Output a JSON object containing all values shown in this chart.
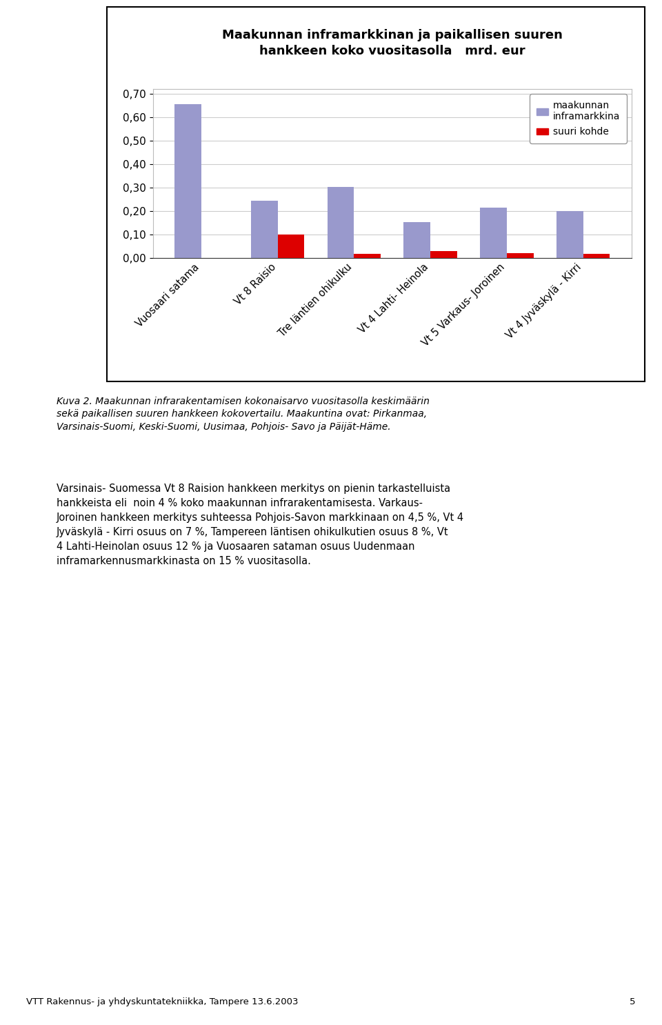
{
  "title_line1": "Maakunnan inframarkkinan ja paikallisen suuren",
  "title_line2": "hankkeen koko vuositasolla   mrd. eur",
  "categories": [
    "Vuosaari satama",
    "Vt 8 Raisio",
    "Tre läntien ohikulku",
    "Vt 4 Lahti- Heinola",
    "Vt 5 Varkaus- Joroinen",
    "Vt 4 Jyväskylä - Kirri"
  ],
  "blue_values": [
    0.655,
    0.245,
    0.305,
    0.155,
    0.215,
    0.2
  ],
  "red_values": [
    0.0,
    0.1,
    0.018,
    0.03,
    0.022,
    0.018
  ],
  "blue_color": "#9999CC",
  "red_color": "#DD0000",
  "legend_blue": "maakunnan\ninframarkkina",
  "legend_red": "suuri kohde",
  "yticks": [
    0.0,
    0.1,
    0.2,
    0.3,
    0.4,
    0.5,
    0.6,
    0.7
  ],
  "ylim": [
    0,
    0.72
  ],
  "grid_color": "#CCCCCC",
  "caption_italic": "Kuva 2. Maakunnan infrarakentamisen kokonaisarvo vuositasolla keskimäärin\nsekä paikallisen suuren hankkeen kokovertailu. Maakuntina ovat: Pirkanmaa,\nVarsinais-Suomi, Keski-Suomi, Uusimaa, Pohjois- Savo ja Päijät-Häme.",
  "body_text": "Varsinais- Suomessa Vt 8 Raision hankkeen merkitys on pienin tarkastelluista\nhankkeista eli  noin 4 % koko maakunnan infrarakentamisesta. Varkaus-\nJoroinen hankkeen merkitys suhteessa Pohjois-Savon markkinaan on 4,5 %, Vt 4\nJyväskylä - Kirri osuus on 7 %, Tampereen läntisen ohikulkutien osuus 8 %, Vt\n4 Lahti-Heinolan osuus 12 % ja Vuosaaren sataman osuus Uudenmaan\ninframarkennusmarkkinasta on 15 % vuositasolla.",
  "footer_text": "VTT Rakennus- ja yhdyskuntatekniikka, Tampere 13.6.2003",
  "footer_page": "5"
}
